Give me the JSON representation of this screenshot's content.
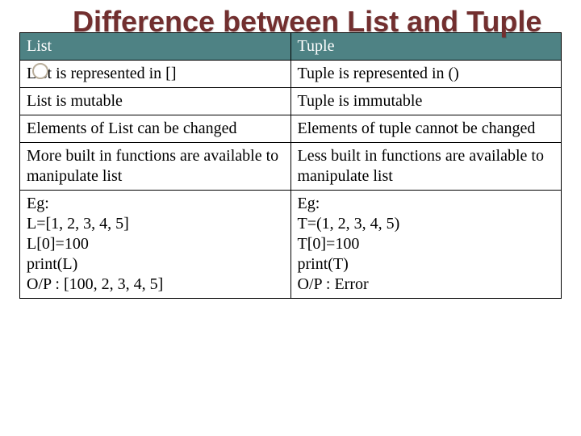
{
  "title": "Difference between List and Tuple",
  "table": {
    "header_bg": "#4e8284",
    "header_fg": "#ffffff",
    "border_color": "#000000",
    "cell_fontsize": 20,
    "columns": [
      {
        "label": "List",
        "width": "50%"
      },
      {
        "label": "Tuple",
        "width": "50%"
      }
    ],
    "rows": [
      {
        "c0": "List is represented in []",
        "c1": "Tuple is represented in ()"
      },
      {
        "c0": "List is mutable",
        "c1": "Tuple is immutable"
      },
      {
        "c0": "Elements of List can be changed",
        "c1": "Elements of tuple cannot be changed"
      },
      {
        "c0": "More built in functions are available to manipulate list",
        "c1": "Less built in functions are available to manipulate list"
      },
      {
        "c0": "Eg:\nL=[1, 2, 3, 4, 5]\nL[0]=100\nprint(L)\nO/P : [100, 2, 3, 4, 5]",
        "c1": "Eg:\nT=(1, 2, 3, 4, 5)\nT[0]=100\nprint(T)\nO/P : Error"
      }
    ]
  },
  "title_color": "#722f2f",
  "title_fontsize": 36,
  "background_color": "#ffffff"
}
